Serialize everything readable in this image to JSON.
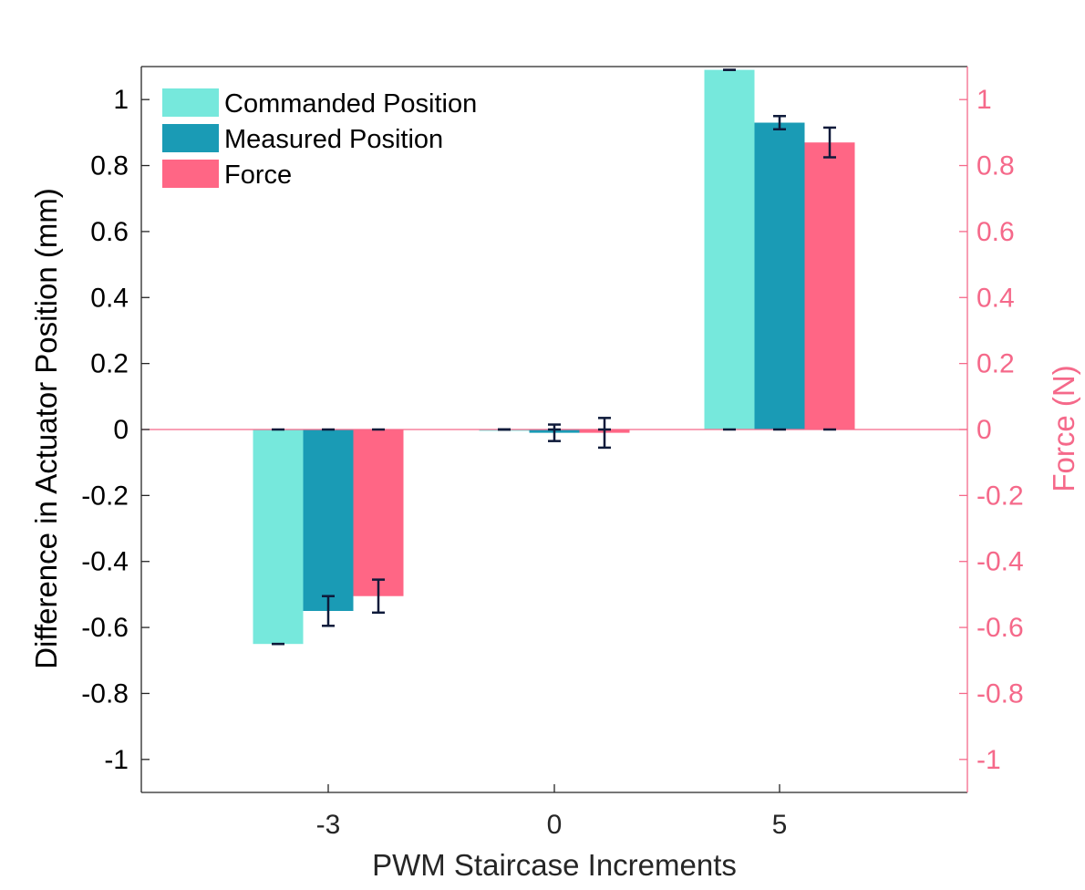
{
  "chart_data": {
    "type": "bar",
    "categories": [
      "-3",
      "0",
      "5"
    ],
    "xlabel": "PWM Staircase Increments",
    "ylabel": "Difference in Actuator Position (mm)",
    "ylabel_right": "Force (N)",
    "ylim": [
      -1.1,
      1.1
    ],
    "ylim_right": [
      -1.1,
      1.1
    ],
    "yticks": [
      "-1",
      "-0.8",
      "-0.6",
      "-0.4",
      "-0.2",
      "0",
      "0.2",
      "0.4",
      "0.6",
      "0.8",
      "1"
    ],
    "yticks_right": [
      "-1",
      "-0.8",
      "-0.6",
      "-0.4",
      "-0.2",
      "0",
      "0.2",
      "0.4",
      "0.6",
      "0.8",
      "1"
    ],
    "legend_position": "top-left",
    "grid": false,
    "series": [
      {
        "name": "Commanded Position",
        "values": [
          -0.65,
          0.0,
          1.09
        ],
        "errors": [
          0.0,
          0.0,
          0.0
        ],
        "color": "#76E8DC"
      },
      {
        "name": "Measured Position",
        "values": [
          -0.55,
          -0.01,
          0.93
        ],
        "errors": [
          0.045,
          0.025,
          0.02
        ],
        "color": "#1A9BB5"
      },
      {
        "name": "Force",
        "values": [
          -0.505,
          -0.01,
          0.87
        ],
        "errors": [
          0.05,
          0.045,
          0.045
        ],
        "color": "#FF6685"
      }
    ],
    "right_axis_color": "#F5698A",
    "error_bar_color": "#0E1A3A"
  }
}
